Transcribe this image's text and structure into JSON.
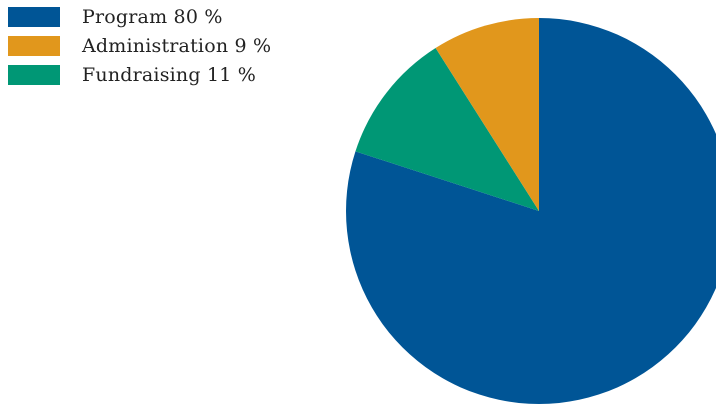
{
  "chart_data": {
    "type": "pie",
    "title": "",
    "legend_position": "top-left",
    "slices": [
      {
        "label": "Program 80 %",
        "name": "Program",
        "value": 80,
        "color": "#005596"
      },
      {
        "label": "Fundraising 11 %",
        "name": "Fundraising",
        "value": 11,
        "color": "#009775"
      },
      {
        "label": "Administration 9 %",
        "name": "Administration",
        "value": 9,
        "color": "#E1971C"
      }
    ],
    "legend": [
      {
        "label": "Program 80 %",
        "color": "#005596"
      },
      {
        "label": "Administration 9 %",
        "color": "#E1971C"
      },
      {
        "label": "Fundraising 11 %",
        "color": "#009775"
      }
    ]
  }
}
